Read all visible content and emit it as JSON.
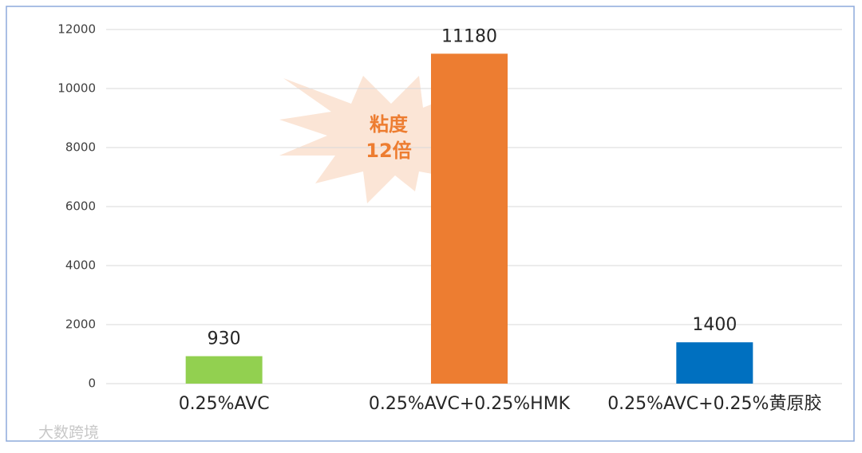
{
  "chart_data": {
    "type": "bar",
    "categories": [
      "0.25%AVC",
      "0.25%AVC+0.25%HMK",
      "0.25%AVC+0.25%黄原胶"
    ],
    "values": [
      930,
      11180,
      1400
    ],
    "colors": [
      "#92d050",
      "#ed7d31",
      "#0070c0"
    ],
    "ylim": [
      0,
      12000
    ],
    "yticks": [
      0,
      2000,
      4000,
      6000,
      8000,
      10000,
      12000
    ],
    "grid": true,
    "annotation": [
      "粘度",
      "12倍"
    ],
    "watermark": "大数跨境"
  }
}
